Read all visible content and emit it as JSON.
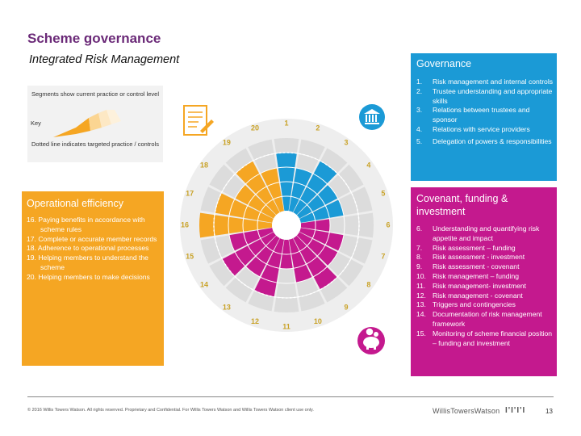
{
  "header": {
    "title": "Scheme governance",
    "subtitle": "Integrated Risk Management"
  },
  "key": {
    "segments_text": "Segments show current practice or control level",
    "key_label": "Key",
    "dotted_text": "Dotted line indicates targeted practice / controls"
  },
  "operational": {
    "title": "Operational efficiency",
    "items": [
      {
        "num": "16.",
        "text": "Paying benefits in accordance with scheme rules"
      },
      {
        "num": "17.",
        "text": "Complete or accurate member records"
      },
      {
        "num": "18.",
        "text": "Adherence to operational processes"
      },
      {
        "num": "19.",
        "text": "Helping members to understand the scheme"
      },
      {
        "num": "20.",
        "text": "Helping members to make decisions"
      }
    ]
  },
  "governance": {
    "title": "Governance",
    "items": [
      {
        "num": "1.",
        "text": "Risk management and internal controls"
      },
      {
        "num": "2.",
        "text": "Trustee understanding and appropriate skills"
      },
      {
        "num": "3.",
        "text": "Relations between trustees and sponsor"
      },
      {
        "num": "4.",
        "text": "Relations with service providers"
      },
      {
        "num": "5.",
        "text": "Delegation of powers & responsibilities"
      }
    ]
  },
  "covenant": {
    "title": "Covenant, funding & investment",
    "items": [
      {
        "num": "6.",
        "text": "Understanding and quantifying risk appetite and impact"
      },
      {
        "num": "7.",
        "text": "Risk assessment – funding"
      },
      {
        "num": "8.",
        "text": "Risk assessment - investment"
      },
      {
        "num": "9.",
        "text": "Risk assessment - covenant"
      },
      {
        "num": "10.",
        "text": "Risk management – funding"
      },
      {
        "num": "11.",
        "text": "Risk management- investment"
      },
      {
        "num": "12.",
        "text": "Risk management - covenant"
      },
      {
        "num": "13.",
        "text": "Triggers and contingencies"
      },
      {
        "num": "14.",
        "text": "Documentation of risk management framework"
      },
      {
        "num": "15.",
        "text": "Monitoring of scheme financial position – funding and investment"
      }
    ]
  },
  "wheel": {
    "segment_labels": [
      "1",
      "2",
      "3",
      "4",
      "5",
      "6",
      "7",
      "8",
      "9",
      "10",
      "11",
      "12",
      "13",
      "14",
      "15",
      "16",
      "17",
      "18",
      "19",
      "20"
    ],
    "segment_levels": [
      4,
      3,
      4,
      3,
      3,
      2,
      3,
      3,
      4,
      3,
      2,
      4,
      3,
      4,
      3,
      5,
      4,
      3,
      4,
      3
    ],
    "target_level": 4,
    "max_level": 5,
    "colors": {
      "governance": "#1b9ad6",
      "covenant": "#c4198e",
      "operational": "#f5a623",
      "unfilled": "#dcdcdc",
      "label_gold": "#c9a227"
    }
  },
  "footer": {
    "copyright": "© 2016 Willis Towers Watson. All rights reserved. Proprietary and Confidential. For Willis Towers Watson and Willis Towers Watson client use only.",
    "logo_text": "WillisTowersWatson",
    "logo_mark": "I'I'I'I",
    "page_number": "13"
  }
}
